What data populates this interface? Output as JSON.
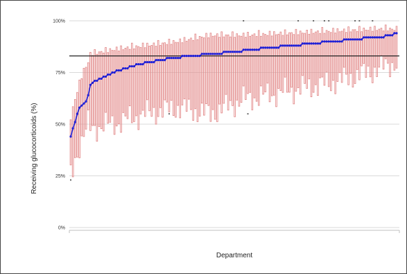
{
  "chart_data": {
    "type": "boxplot-with-line",
    "xlabel": "Department",
    "ylabel": "Receiving glucocorticoids (%)",
    "ylim": [
      0,
      100
    ],
    "y_ticks": [
      0,
      25,
      50,
      75,
      100
    ],
    "y_tick_labels": [
      "0%",
      "25%",
      "50%",
      "75%",
      "100%"
    ],
    "grid": "horizontal",
    "x_tick_labels": [],
    "reference_line": {
      "value": 83,
      "color": "#222222"
    },
    "department_count": 150,
    "series": [
      {
        "values": [
          44,
          48,
          51,
          55,
          58,
          59,
          60,
          61,
          64,
          69,
          70,
          71,
          71,
          72,
          72,
          73,
          73,
          74,
          74,
          75,
          75,
          76,
          76,
          76,
          77,
          77,
          77,
          78,
          78,
          78,
          79,
          79,
          79,
          79,
          80,
          80,
          80,
          80,
          80,
          81,
          81,
          81,
          81,
          81,
          82,
          82,
          82,
          82,
          82,
          82,
          82,
          83,
          83,
          83,
          83,
          83,
          83,
          83,
          83,
          83,
          84,
          84,
          84,
          84,
          84,
          84,
          84,
          84,
          84,
          84,
          85,
          85,
          85,
          85,
          85,
          85,
          85,
          85,
          85,
          86,
          86,
          86,
          86,
          86,
          86,
          86,
          86,
          87,
          87,
          87,
          87,
          87,
          87,
          87,
          87,
          87,
          88,
          88,
          88,
          88,
          88,
          88,
          88,
          88,
          88,
          88,
          89,
          89,
          89,
          89,
          89,
          89,
          89,
          89,
          89,
          90,
          90,
          90,
          90,
          90,
          90,
          90,
          90,
          90,
          90,
          91,
          91,
          91,
          91,
          91,
          91,
          91,
          91,
          91,
          92,
          92,
          92,
          92,
          92,
          92,
          92,
          92,
          92,
          92,
          93,
          93,
          93,
          93,
          94,
          94
        ],
        "color": "#1f1fd6"
      }
    ],
    "boxes": [
      {
        "department": 1,
        "low": 25,
        "high": 55
      },
      {
        "department": 2,
        "low": 28,
        "high": 60
      },
      {
        "department": 3,
        "low": 33,
        "high": 64
      },
      {
        "department": 4,
        "low": 36,
        "high": 68
      },
      {
        "department": 5,
        "low": 40,
        "high": 72
      },
      {
        "department": 6,
        "low": 42,
        "high": 75
      },
      {
        "department": 7,
        "low": 45,
        "high": 78
      },
      {
        "department": 8,
        "low": 47,
        "high": 80
      },
      {
        "department": 9,
        "low": 50,
        "high": 82
      },
      {
        "department": 10,
        "low": 48,
        "high": 86
      },
      {
        "department": 20,
        "low": 50,
        "high": 88
      },
      {
        "department": 35,
        "low": 55,
        "high": 90
      },
      {
        "department": 50,
        "low": 58,
        "high": 92
      },
      {
        "department": 65,
        "low": 55,
        "high": 95
      },
      {
        "department": 80,
        "low": 62,
        "high": 95
      },
      {
        "department": 100,
        "low": 66,
        "high": 96
      },
      {
        "department": 120,
        "low": 70,
        "high": 97
      },
      {
        "department": 140,
        "low": 76,
        "high": 98
      },
      {
        "department": 150,
        "low": 80,
        "high": 98
      }
    ],
    "box_color": "#e38c8c",
    "outliers": [
      {
        "department": 1,
        "value": 23
      },
      {
        "department": 46,
        "value": 55
      },
      {
        "department": 80,
        "value": 100
      },
      {
        "department": 82,
        "value": 55
      },
      {
        "department": 105,
        "value": 100
      },
      {
        "department": 112,
        "value": 100
      },
      {
        "department": 117,
        "value": 100
      },
      {
        "department": 119,
        "value": 100
      },
      {
        "department": 131,
        "value": 100
      },
      {
        "department": 133,
        "value": 100
      },
      {
        "department": 139,
        "value": 100
      }
    ]
  }
}
